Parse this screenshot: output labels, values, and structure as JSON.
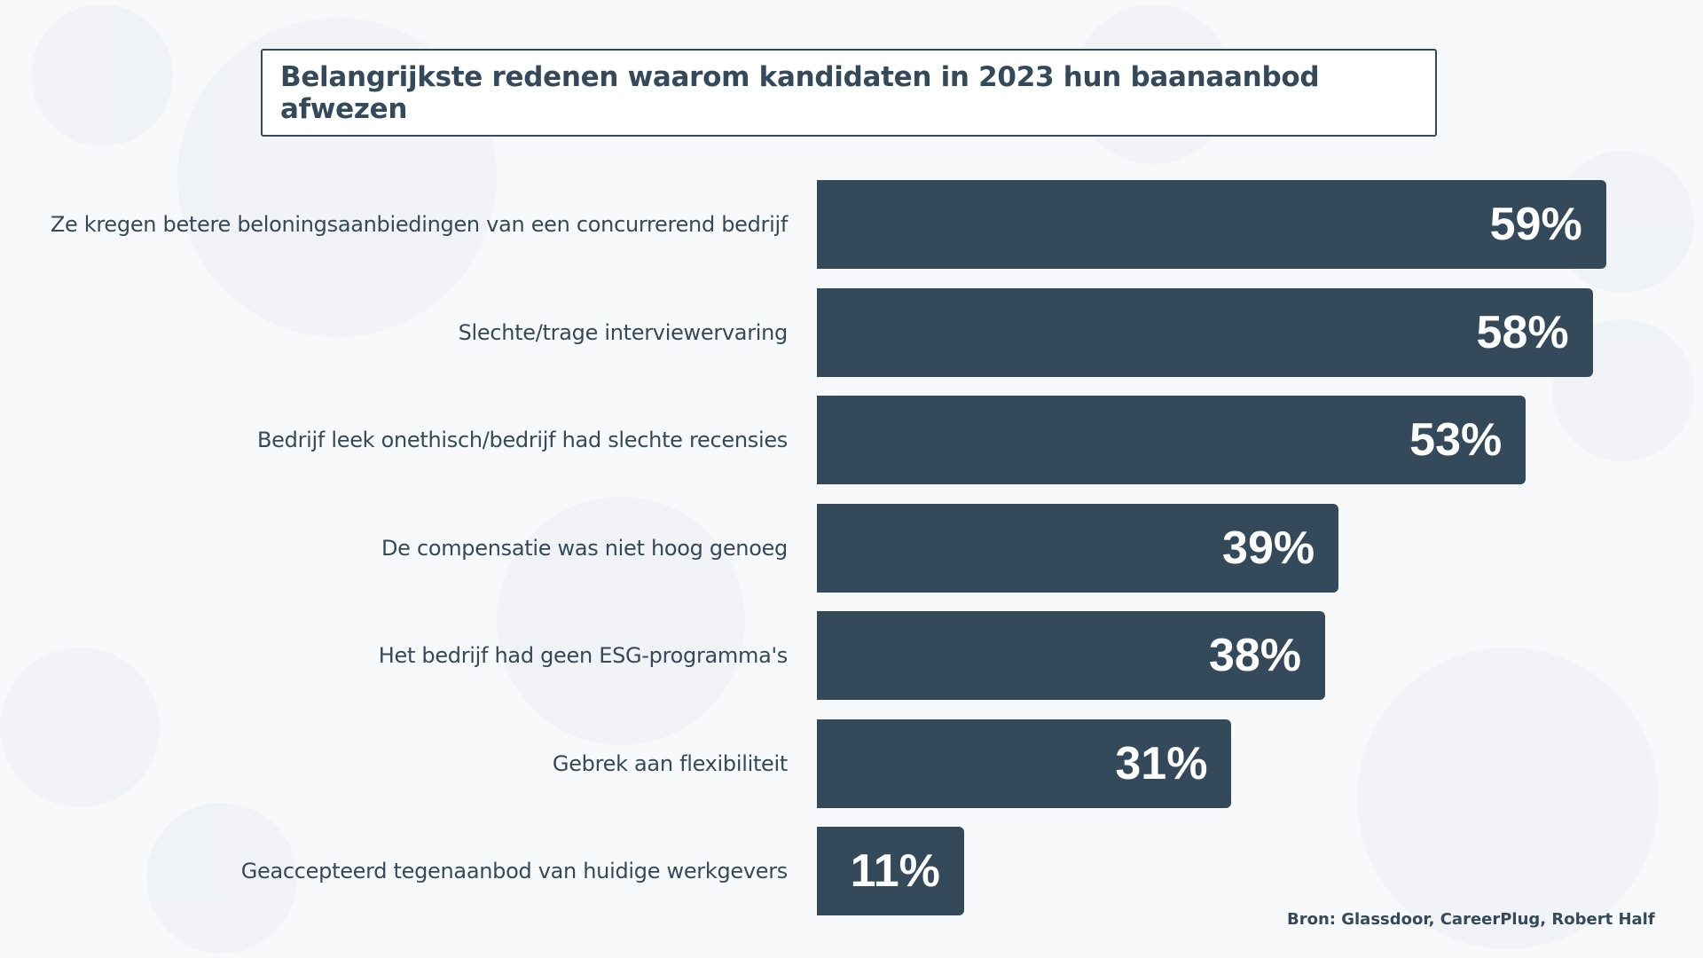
{
  "chart_data": {
    "type": "bar",
    "orientation": "horizontal",
    "title": "Belangrijkste redenen waarom kandidaten in 2023 hun baanaanbod afwezen",
    "categories": [
      "Ze kregen betere beloningsaanbiedingen van een concurrerend bedrijf",
      "Slechte/trage interviewervaring",
      "Bedrijf leek onethisch/bedrijf had slechte recensies",
      "De compensatie was niet hoog genoeg",
      "Het bedrijf had geen ESG-programma's",
      "Gebrek aan flexibiliteit",
      "Geaccepteerd tegenaanbod van huidige werkgevers"
    ],
    "values": [
      59,
      58,
      53,
      39,
      38,
      31,
      11
    ],
    "value_labels": [
      "59%",
      "58%",
      "53%",
      "39%",
      "38%",
      "31%",
      "11%"
    ],
    "unit": "%",
    "xlim": [
      0,
      60
    ],
    "grid": false,
    "bar_color": "#34495a",
    "source": "Bron: Glassdoor, CareerPlug, Robert Half"
  }
}
